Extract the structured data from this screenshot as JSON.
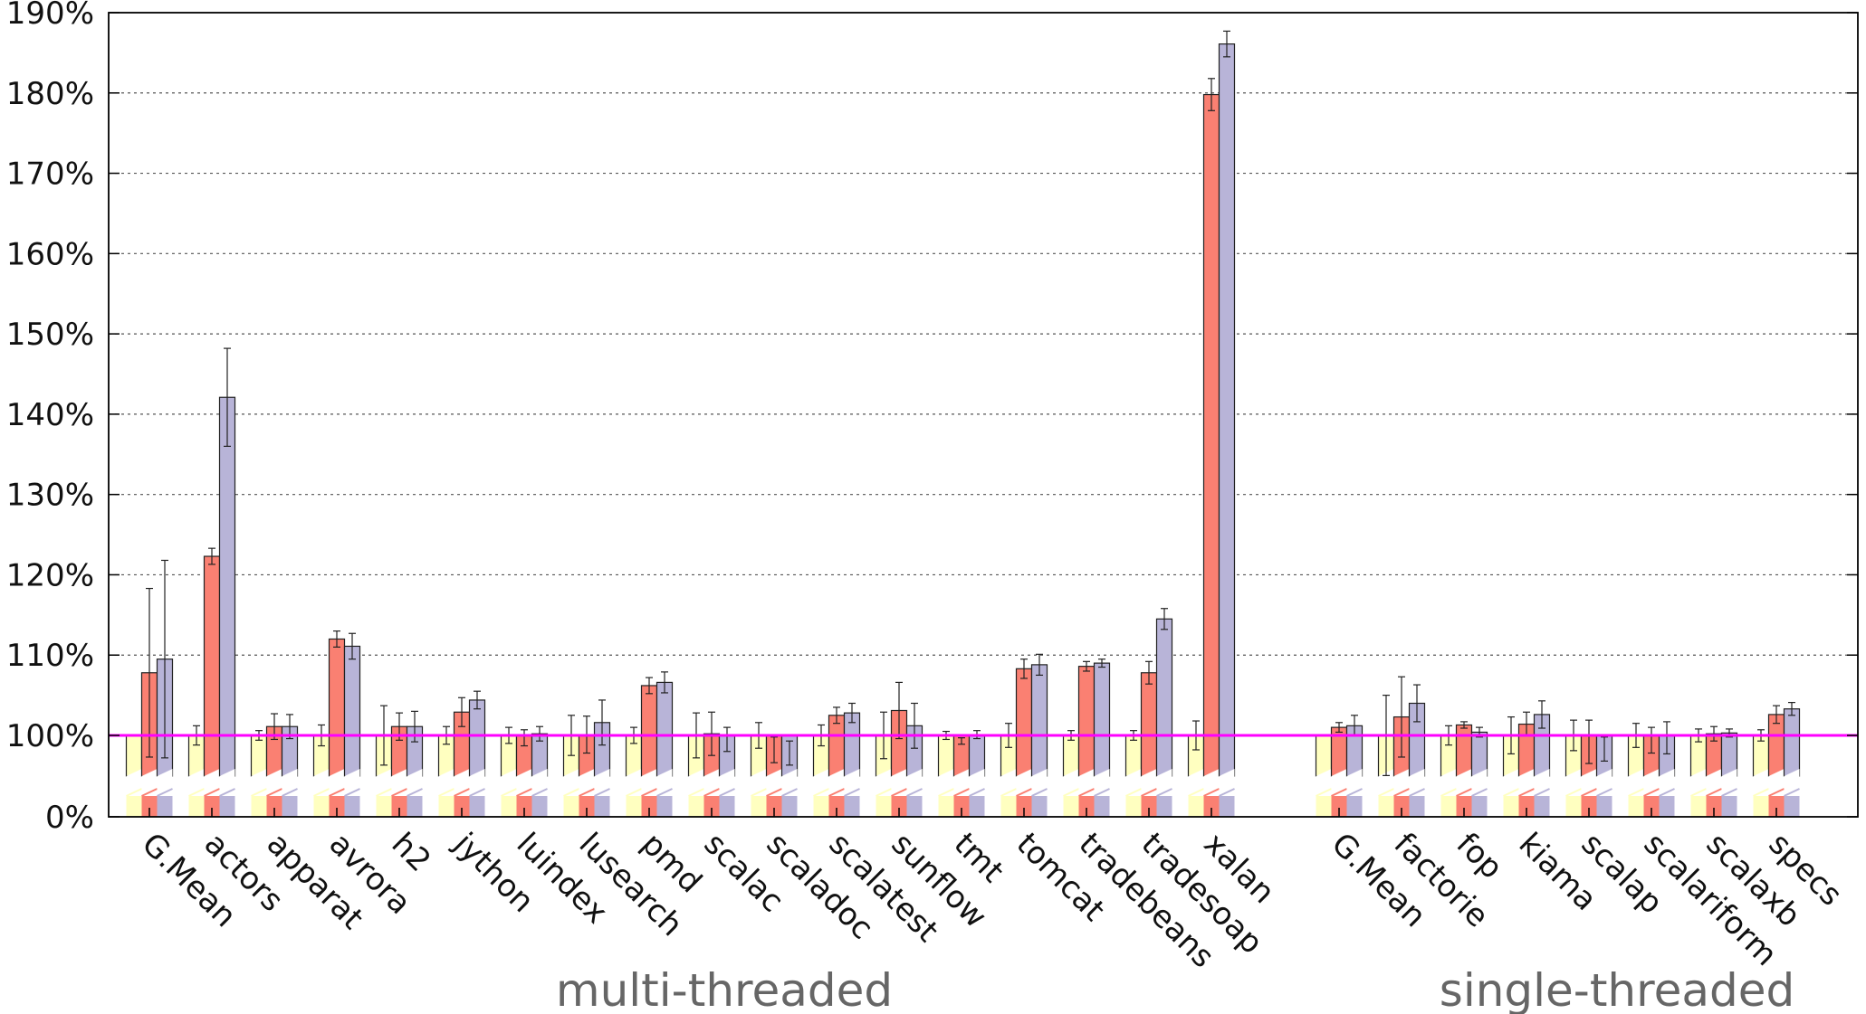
{
  "chart_data": {
    "type": "bar",
    "title": "",
    "xlabel": "",
    "ylabel": "",
    "ylim": [
      0,
      190
    ],
    "y_unit": "%",
    "y_ticks": [
      "0%",
      "100%",
      "110%",
      "120%",
      "130%",
      "140%",
      "150%",
      "160%",
      "170%",
      "180%",
      "190%"
    ],
    "y_axis_break": true,
    "grid": true,
    "legend": "none",
    "baseline": {
      "value": 100,
      "color": "#ff00ff"
    },
    "series_colors": [
      "#ffffc0",
      "#fa8072",
      "#b8b4d8"
    ],
    "groups": [
      {
        "name": "multi-threaded",
        "categories": [
          "G.Mean",
          "actors",
          "apparat",
          "avrora",
          "h2",
          "jython",
          "luindex",
          "lusearch",
          "pmd",
          "scalac",
          "scaladoc",
          "scalatest",
          "sunflow",
          "tmt",
          "tomcat",
          "tradebeans",
          "tradesoap",
          "xalan"
        ],
        "series": [
          {
            "values": [
              100,
              100,
              100,
              100,
              100,
              100,
              100,
              100,
              100,
              100,
              100,
              100,
              100,
              100,
              100,
              100,
              100,
              100
            ],
            "errors": [
              null,
              1.2,
              0.6,
              1.3,
              3.7,
              1.1,
              1.0,
              2.5,
              1.0,
              2.8,
              1.6,
              1.3,
              2.9,
              0.5,
              1.5,
              0.6,
              0.6,
              1.8
            ]
          },
          {
            "values": [
              107.8,
              122.3,
              101.1,
              112,
              101.1,
              102.9,
              99.7,
              100.1,
              106.2,
              100.2,
              98.2,
              102.5,
              103.1,
              99.3,
              108.3,
              108.6,
              107.8,
              179.8
            ],
            "errors": [
              10.5,
              1.0,
              1.6,
              1.0,
              1.7,
              1.8,
              1.0,
              2.3,
              1.0,
              2.7,
              1.6,
              1.0,
              3.5,
              0.4,
              1.2,
              0.6,
              1.4,
              2.0
            ]
          },
          {
            "values": [
              109.5,
              142.1,
              101.1,
              111.1,
              101.1,
              104.4,
              100.2,
              101.6,
              106.6,
              99.5,
              97.8,
              102.8,
              101.2,
              100.1,
              108.8,
              109,
              114.5,
              186.1
            ],
            "errors": [
              12.3,
              6.1,
              1.5,
              1.6,
              1.9,
              1.1,
              0.9,
              2.8,
              1.3,
              1.5,
              1.5,
              1.2,
              2.8,
              0.5,
              1.3,
              0.5,
              1.3,
              1.6
            ]
          }
        ]
      },
      {
        "name": "single-threaded",
        "categories": [
          "G.Mean",
          "factorie",
          "fop",
          "kiama",
          "scalap",
          "scalariform",
          "scalaxb",
          "specs"
        ],
        "series": [
          {
            "values": [
              100,
              100,
              100,
              100,
              100,
              100,
              100,
              100
            ],
            "errors": [
              null,
              5.0,
              1.2,
              2.3,
              1.9,
              1.5,
              0.8,
              0.7
            ]
          },
          {
            "values": [
              101,
              102.3,
              101.3,
              101.4,
              99.2,
              99.4,
              100.2,
              102.6
            ],
            "errors": [
              0.6,
              5.0,
              0.4,
              1.5,
              2.7,
              1.6,
              0.9,
              1.1
            ]
          },
          {
            "values": [
              101.2,
              104,
              100.4,
              102.6,
              98.3,
              99.7,
              100.3,
              103.3
            ],
            "errors": [
              1.3,
              2.3,
              0.6,
              1.7,
              1.5,
              2.0,
              0.5,
              0.8
            ]
          }
        ]
      }
    ]
  }
}
